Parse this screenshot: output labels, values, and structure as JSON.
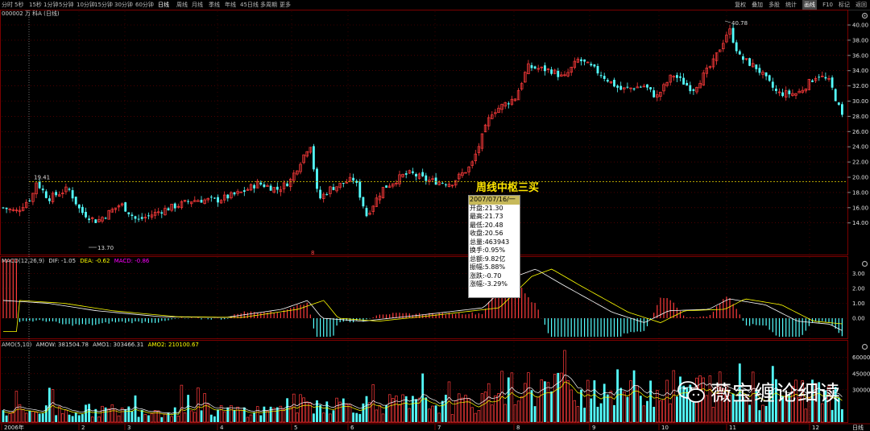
{
  "toolbar": {
    "periods": [
      {
        "label": "分时",
        "active": false
      },
      {
        "label": "5秒",
        "active": false
      },
      {
        "label": "15秒",
        "active": false
      },
      {
        "label": "1分钟",
        "active": false
      },
      {
        "label": "5分钟",
        "active": false
      },
      {
        "label": "10分钟",
        "active": false
      },
      {
        "label": "15分钟",
        "active": false
      },
      {
        "label": "30分钟",
        "active": false
      },
      {
        "label": "60分钟",
        "active": false
      },
      {
        "label": "日线",
        "active": true
      },
      {
        "label": "周线",
        "active": false
      },
      {
        "label": "月线",
        "active": false
      },
      {
        "label": "季线",
        "active": false
      },
      {
        "label": "年线",
        "active": false
      },
      {
        "label": "45日线",
        "active": false
      },
      {
        "label": "多周期",
        "active": false
      },
      {
        "label": "更多",
        "active": false
      }
    ],
    "right": [
      {
        "label": "复权",
        "active": false
      },
      {
        "label": "叠加",
        "active": false
      },
      {
        "label": "多股",
        "active": false
      },
      {
        "label": "统计",
        "active": false
      },
      {
        "label": "画线",
        "active": true
      },
      {
        "label": "F10",
        "active": false
      },
      {
        "label": "标记",
        "active": false
      },
      {
        "label": "返回",
        "active": false
      }
    ]
  },
  "stock_title": "000002 万 科A (日线)",
  "macd_status": {
    "prefix": "MACD(12,26,9)",
    "dif": "DIF: -1.05",
    "dea": "DEA: -0.62",
    "macd": "MACD: -0.86"
  },
  "amo_status": {
    "prefix": "AMO(5,10)",
    "amow": "AMOW: 381504.78",
    "amo1": "AMO1: 303466.31",
    "amo2": "AMO2: 210100.67"
  },
  "price_axis": [
    "40.00",
    "38.00",
    "36.00",
    "34.00",
    "32.00",
    "30.00",
    "28.00",
    "26.00",
    "24.00",
    "22.00",
    "20.00",
    "18.00",
    "16.00",
    "14.00"
  ],
  "macd_axis": [
    "3.00",
    "2.00",
    "1.00",
    "0.00"
  ],
  "amo_axis": [
    "60000",
    "45000",
    "30000"
  ],
  "x_axis": [
    "2006年",
    "2",
    "3",
    "4",
    "5",
    "6",
    "7",
    "8",
    "9",
    "10",
    "11",
    "12"
  ],
  "x_axis_right": "日线",
  "markers": {
    "high": "40.78",
    "low": "13.70",
    "ref": "19.41",
    "small": "8"
  },
  "annotation": "周线中枢三买",
  "tooltip": {
    "date": "2007/07/16/一",
    "rows": [
      "开盘:21.30",
      "最高:21.73",
      "最低:20.48",
      "收盘:20.56",
      "总量:463943",
      "换手:0.95%",
      "总额:9.82亿",
      "振幅:5.88%",
      "涨跌:-0.70",
      "涨幅:-3.29%"
    ]
  },
  "watermark": "薇宝缠论细读",
  "colors": {
    "up": "#ff3b3b",
    "down": "#54ffff",
    "dif": "#ffffff",
    "dea": "#ffff00",
    "macd_label": "#ff00ff",
    "grid": "#7a0000",
    "refline": "#c8b400"
  }
}
